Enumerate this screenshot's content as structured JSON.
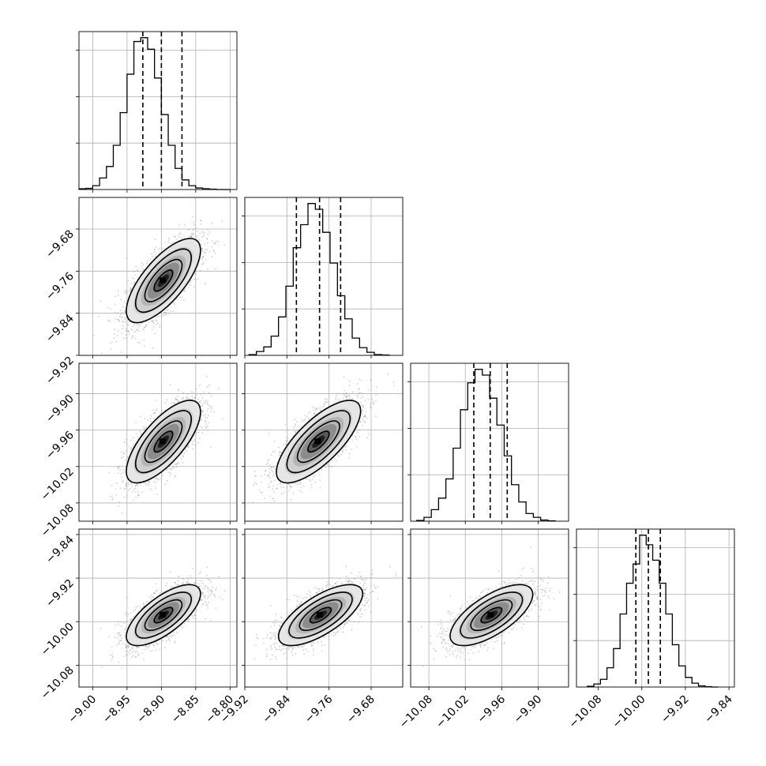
{
  "chart_data": {
    "type": "corner",
    "panels": [
      {
        "kind": "hist",
        "row": 0,
        "col": 0,
        "xlim": [
          -9.02,
          -8.79
        ],
        "bins": [
          -9.02,
          -9.01,
          -9.0,
          -8.99,
          -8.98,
          -8.97,
          -8.96,
          -8.95,
          -8.94,
          -8.93,
          -8.92,
          -8.91,
          -8.9,
          -8.89,
          -8.88,
          -8.87,
          -8.86,
          -8.85,
          -8.84,
          -8.83,
          -8.82,
          -8.81,
          -8.8
        ],
        "counts": [
          2,
          3,
          10,
          30,
          60,
          115,
          200,
          300,
          385,
          395,
          365,
          290,
          195,
          115,
          55,
          25,
          10,
          4,
          2,
          1,
          0,
          0
        ],
        "quantiles": [
          -8.927,
          -8.9,
          -8.87
        ]
      },
      {
        "kind": "hist",
        "row": 1,
        "col": 1,
        "xlim": [
          -9.92,
          -9.62
        ],
        "bins": [
          -9.912,
          -9.898,
          -9.884,
          -9.87,
          -9.856,
          -9.842,
          -9.828,
          -9.814,
          -9.8,
          -9.786,
          -9.772,
          -9.758,
          -9.744,
          -9.73,
          -9.716,
          -9.702,
          -9.688,
          -9.674,
          -9.66,
          -9.646
        ],
        "counts": [
          2,
          10,
          22,
          50,
          100,
          180,
          280,
          340,
          395,
          380,
          320,
          240,
          155,
          95,
          45,
          20,
          8,
          2,
          1
        ],
        "quantiles": [
          -9.822,
          -9.778,
          -9.738
        ]
      },
      {
        "kind": "hist",
        "row": 2,
        "col": 2,
        "xlim": [
          -10.11,
          -9.85
        ],
        "bins": [
          -10.1,
          -10.088,
          -10.076,
          -10.064,
          -10.052,
          -10.04,
          -10.028,
          -10.016,
          -10.004,
          -9.992,
          -9.98,
          -9.968,
          -9.956,
          -9.944,
          -9.932,
          -9.92,
          -9.908,
          -9.896,
          -9.884,
          -9.872
        ],
        "counts": [
          2,
          10,
          30,
          60,
          110,
          190,
          290,
          360,
          395,
          380,
          320,
          250,
          170,
          95,
          50,
          20,
          10,
          3,
          1
        ],
        "quantiles": [
          -10.006,
          -9.979,
          -9.951
        ]
      },
      {
        "kind": "hist",
        "row": 3,
        "col": 3,
        "xlim": [
          -10.12,
          -9.83
        ],
        "bins": [
          -10.1,
          -10.088,
          -10.076,
          -10.064,
          -10.052,
          -10.04,
          -10.028,
          -10.016,
          -10.004,
          -9.992,
          -9.98,
          -9.968,
          -9.956,
          -9.944,
          -9.932,
          -9.92,
          -9.908,
          -9.896,
          -9.884,
          -9.872,
          -9.86
        ],
        "counts": [
          2,
          8,
          20,
          50,
          100,
          190,
          270,
          320,
          395,
          370,
          330,
          270,
          190,
          110,
          55,
          25,
          10,
          3,
          1,
          0
        ],
        "quantiles": [
          -10.011,
          -9.988,
          -9.966
        ]
      },
      {
        "kind": "contour",
        "row": 1,
        "col": 0,
        "xlim": [
          -9.02,
          -8.79
        ],
        "ylim": [
          -9.92,
          -9.62
        ],
        "center": [
          -8.897,
          -9.778
        ],
        "sx": 0.027,
        "sy": 0.04,
        "rho": 0.72
      },
      {
        "kind": "contour",
        "row": 2,
        "col": 0,
        "xlim": [
          -9.02,
          -8.79
        ],
        "ylim": [
          -10.11,
          -9.85
        ],
        "center": [
          -8.897,
          -9.979
        ],
        "sx": 0.027,
        "sy": 0.034,
        "rho": 0.72
      },
      {
        "kind": "contour",
        "row": 2,
        "col": 1,
        "xlim": [
          -9.92,
          -9.62
        ],
        "ylim": [
          -10.11,
          -9.85
        ],
        "center": [
          -9.78,
          -9.979
        ],
        "sx": 0.04,
        "sy": 0.034,
        "rho": 0.74
      },
      {
        "kind": "contour",
        "row": 3,
        "col": 0,
        "xlim": [
          -9.02,
          -8.79
        ],
        "ylim": [
          -10.12,
          -9.83
        ],
        "center": [
          -8.897,
          -9.988
        ],
        "sx": 0.027,
        "sy": 0.028,
        "rho": 0.7
      },
      {
        "kind": "contour",
        "row": 3,
        "col": 1,
        "xlim": [
          -9.92,
          -9.62
        ],
        "ylim": [
          -10.12,
          -9.83
        ],
        "center": [
          -9.776,
          -9.988
        ],
        "sx": 0.04,
        "sy": 0.028,
        "rho": 0.7
      },
      {
        "kind": "contour",
        "row": 3,
        "col": 2,
        "xlim": [
          -10.11,
          -9.85
        ],
        "ylim": [
          -10.12,
          -9.83
        ],
        "center": [
          -9.977,
          -9.988
        ],
        "sx": 0.034,
        "sy": 0.028,
        "rho": 0.68
      }
    ],
    "axis_ticks": {
      "x": [
        {
          "values": [
            -9.0,
            -8.95,
            -8.9,
            -8.85,
            -8.8
          ],
          "labels": [
            "−9.00",
            "−8.95",
            "−8.90",
            "−8.85",
            "−8.80"
          ]
        },
        {
          "values": [
            -9.92,
            -9.84,
            -9.76,
            -9.68
          ],
          "labels": [
            "−9.92",
            "−9.84",
            "−9.76",
            "−9.68"
          ]
        },
        {
          "values": [
            -10.08,
            -10.02,
            -9.96,
            -9.9
          ],
          "labels": [
            "−10.08",
            "−10.02",
            "−9.96",
            "−9.90"
          ]
        },
        {
          "values": [
            -10.08,
            -10.0,
            -9.92,
            -9.84
          ],
          "labels": [
            "−10.08",
            "−10.00",
            "−9.92",
            "−9.84"
          ]
        }
      ],
      "y": [
        null,
        {
          "values": [
            -9.92,
            -9.84,
            -9.76,
            -9.68
          ],
          "labels": [
            "−9.92",
            "−9.84",
            "−9.76",
            "−9.68"
          ]
        },
        {
          "values": [
            -10.08,
            -10.02,
            -9.96,
            -9.9
          ],
          "labels": [
            "−10.08",
            "−10.02",
            "−9.96",
            "−9.90"
          ]
        },
        {
          "values": [
            -10.08,
            -10.0,
            -9.92,
            -9.84
          ],
          "labels": [
            "−10.08",
            "−10.00",
            "−9.92",
            "−9.84"
          ]
        }
      ]
    },
    "grid": true,
    "colors": {
      "line": "#000000",
      "grid": "#b0b0b0",
      "points": "#9a9a9a",
      "frame": "#000000"
    }
  }
}
